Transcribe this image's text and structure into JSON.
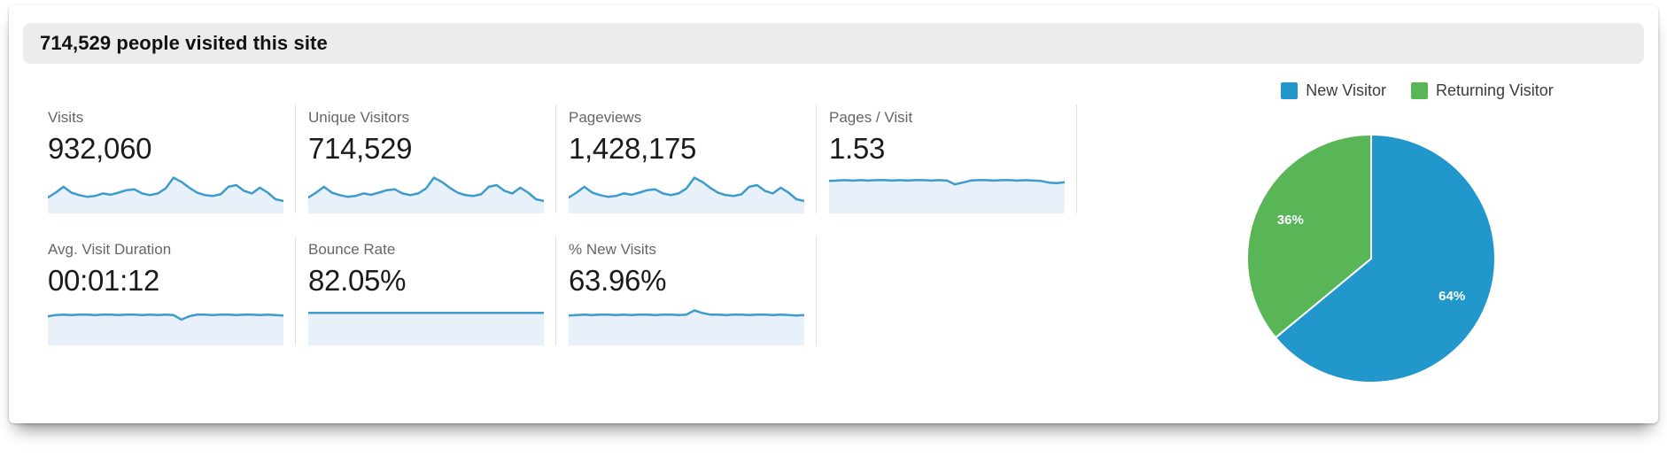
{
  "header": {
    "title": "714,529 people visited this site"
  },
  "metrics": [
    {
      "id": "visits",
      "label": "Visits",
      "value": "932,060",
      "spark": "wavy",
      "row": 0
    },
    {
      "id": "unique-visitors",
      "label": "Unique Visitors",
      "value": "714,529",
      "spark": "wavy",
      "row": 0
    },
    {
      "id": "pageviews",
      "label": "Pageviews",
      "value": "1,428,175",
      "spark": "wavy",
      "row": 0
    },
    {
      "id": "pages-per-visit",
      "label": "Pages / Visit",
      "value": "1.53",
      "spark": "flat_low",
      "row": 0
    },
    {
      "id": "avg-visit-duration",
      "label": "Avg. Visit Duration",
      "value": "00:01:12",
      "spark": "flat_mid",
      "row": 1
    },
    {
      "id": "bounce-rate",
      "label": "Bounce Rate",
      "value": "82.05%",
      "spark": "flat_line",
      "row": 1
    },
    {
      "id": "percent-new-visits",
      "label": "% New Visits",
      "value": "63.96%",
      "spark": "flat_bump",
      "row": 1
    }
  ],
  "legend": {
    "items": [
      {
        "label": "New Visitor",
        "color": "#2197cb"
      },
      {
        "label": "Returning Visitor",
        "color": "#58b657"
      }
    ]
  },
  "chart_data": [
    {
      "type": "pie",
      "legend_position": "top",
      "slices": [
        {
          "label": "New Visitor",
          "value": 64,
          "display": "64%",
          "color": "#2197cb"
        },
        {
          "label": "Returning Visitor",
          "value": 36,
          "display": "36%",
          "color": "#58b657"
        }
      ]
    },
    {
      "type": "area",
      "line_color": "#3d9bce",
      "fill_color": "#e8f1f9",
      "series": {
        "wavy": [
          0.62,
          0.5,
          0.36,
          0.5,
          0.56,
          0.6,
          0.58,
          0.52,
          0.55,
          0.5,
          0.44,
          0.42,
          0.52,
          0.56,
          0.52,
          0.4,
          0.14,
          0.24,
          0.38,
          0.5,
          0.56,
          0.58,
          0.54,
          0.36,
          0.32,
          0.46,
          0.52,
          0.38,
          0.5,
          0.66,
          0.7
        ],
        "flat_low": [
          0.22,
          0.21,
          0.2,
          0.21,
          0.2,
          0.21,
          0.2,
          0.2,
          0.21,
          0.2,
          0.21,
          0.2,
          0.2,
          0.21,
          0.2,
          0.21,
          0.3,
          0.26,
          0.21,
          0.2,
          0.2,
          0.21,
          0.2,
          0.2,
          0.21,
          0.2,
          0.21,
          0.22,
          0.26,
          0.27,
          0.25
        ],
        "flat_mid": [
          0.3,
          0.27,
          0.26,
          0.27,
          0.26,
          0.26,
          0.27,
          0.26,
          0.26,
          0.27,
          0.26,
          0.26,
          0.27,
          0.26,
          0.27,
          0.26,
          0.27,
          0.38,
          0.3,
          0.26,
          0.26,
          0.27,
          0.26,
          0.26,
          0.27,
          0.26,
          0.26,
          0.27,
          0.26,
          0.27,
          0.28
        ],
        "flat_line": [
          0.22,
          0.22,
          0.22,
          0.22,
          0.22,
          0.22,
          0.22,
          0.22,
          0.22,
          0.22,
          0.22,
          0.22,
          0.22,
          0.22,
          0.22,
          0.22,
          0.22,
          0.22,
          0.22,
          0.22,
          0.22,
          0.22,
          0.22,
          0.22,
          0.22,
          0.22,
          0.22,
          0.22,
          0.22,
          0.22,
          0.22
        ],
        "flat_bump": [
          0.28,
          0.27,
          0.26,
          0.27,
          0.26,
          0.26,
          0.27,
          0.26,
          0.27,
          0.26,
          0.26,
          0.27,
          0.26,
          0.26,
          0.27,
          0.26,
          0.16,
          0.22,
          0.26,
          0.26,
          0.27,
          0.26,
          0.26,
          0.27,
          0.26,
          0.26,
          0.27,
          0.26,
          0.27,
          0.28,
          0.27
        ]
      }
    }
  ],
  "colors": {
    "header_bar": "#ececec",
    "divider": "#e0e0e0",
    "spark_line": "#3d9bce",
    "spark_fill": "#e8f1f9",
    "pie_blue": "#2197cb",
    "pie_green": "#58b657"
  }
}
